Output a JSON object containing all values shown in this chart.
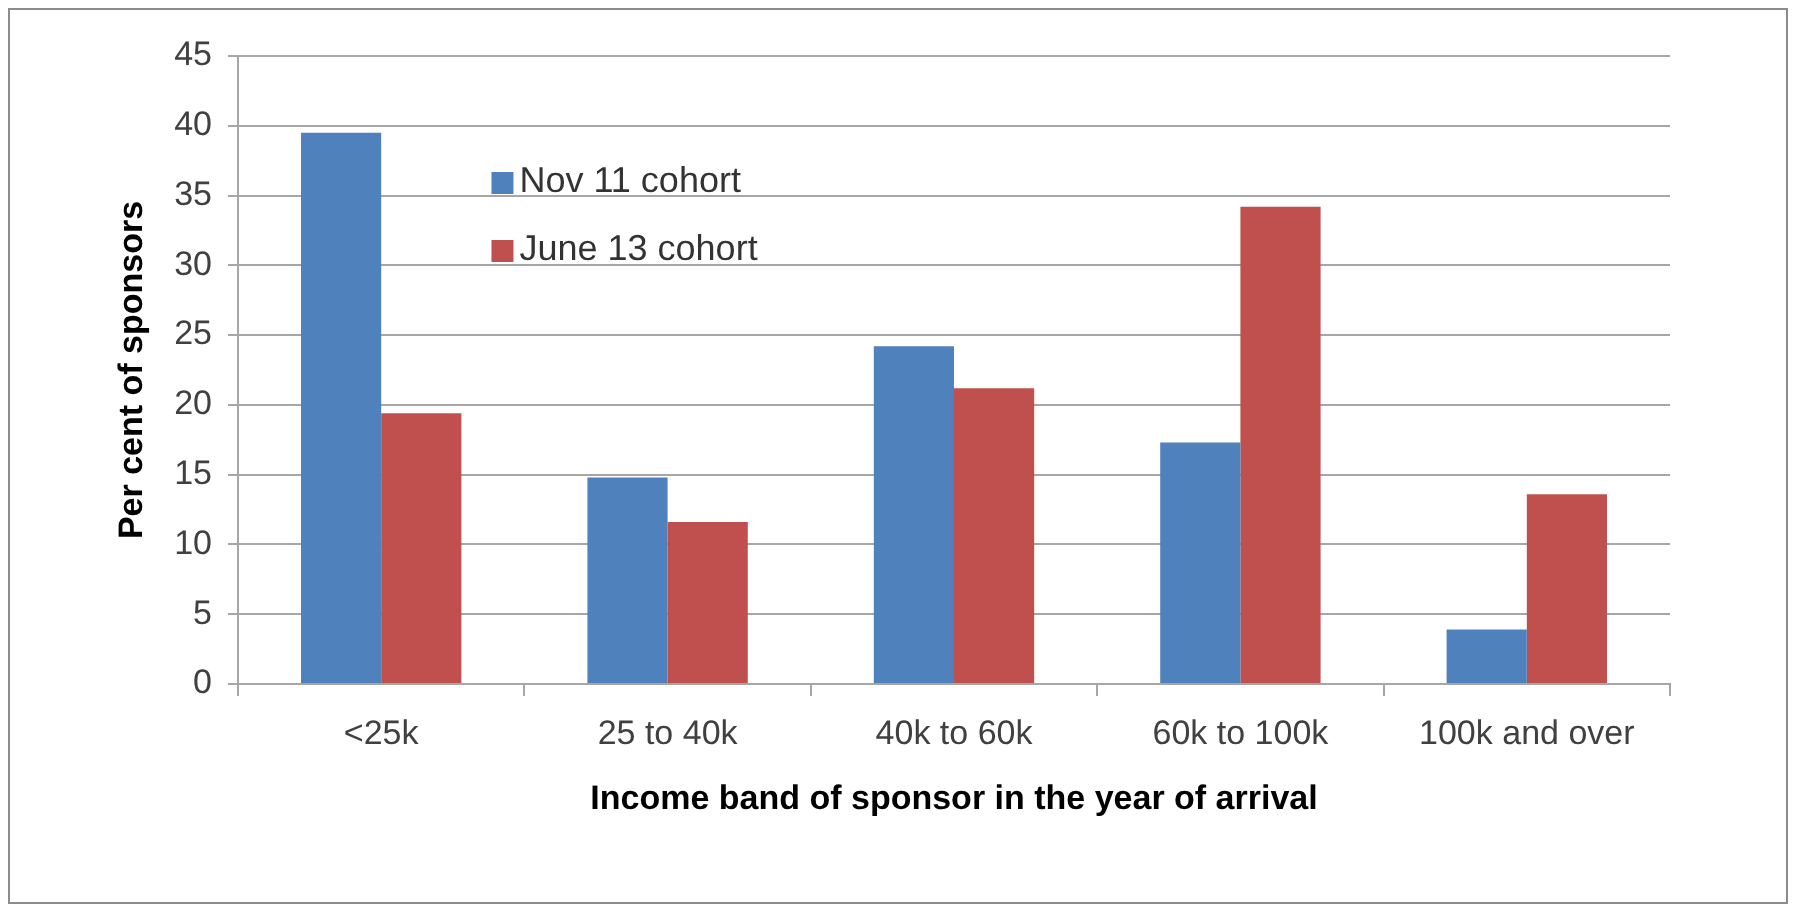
{
  "chart_data": {
    "type": "bar",
    "xlabel": "Income band of sponsor in the year of arrival",
    "ylabel": "Per cent of sponsors",
    "categories": [
      "<25k",
      "25 to 40k",
      "40k to 60k",
      "60k to 100k",
      "100k and over"
    ],
    "series": [
      {
        "name": "Nov 11 cohort",
        "color": "#4f81bd",
        "values": [
          39.5,
          14.8,
          24.2,
          17.3,
          3.9
        ]
      },
      {
        "name": "June 13 cohort",
        "color": "#c0504d",
        "values": [
          19.4,
          11.6,
          21.2,
          34.2,
          13.6
        ]
      }
    ],
    "ylim": [
      0,
      45
    ],
    "yticks": [
      0,
      5,
      10,
      15,
      20,
      25,
      30,
      35,
      40,
      45
    ],
    "grid": "y",
    "legend": "top left"
  }
}
